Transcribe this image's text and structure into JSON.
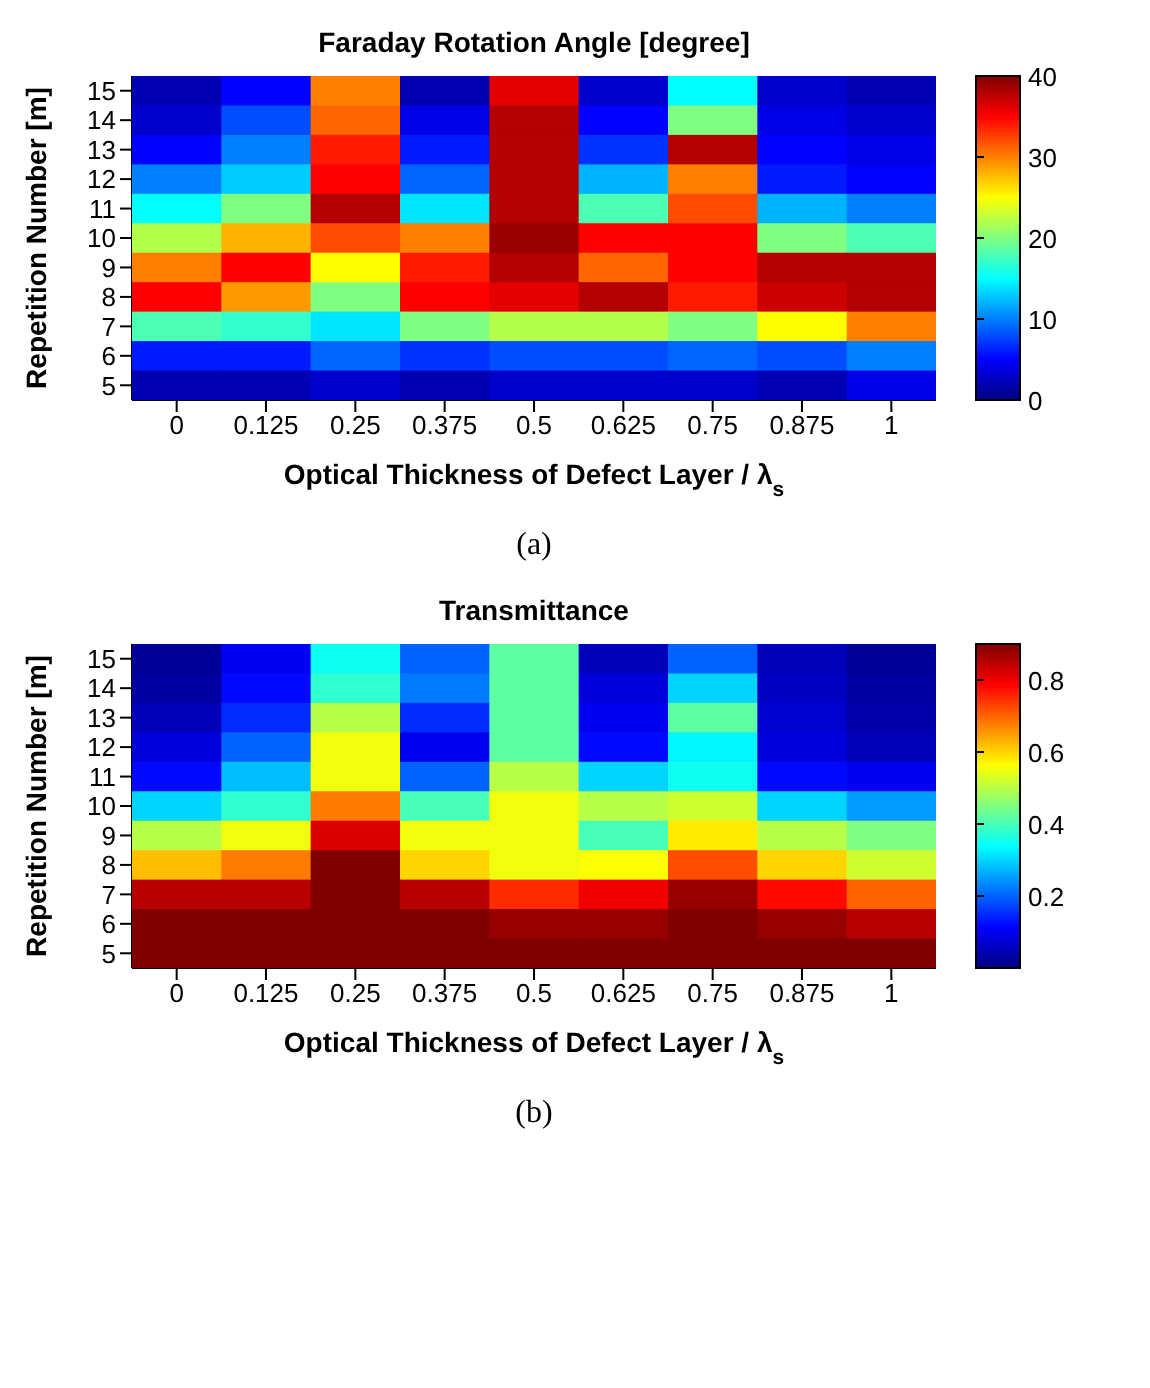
{
  "chart_data": [
    {
      "type": "heatmap",
      "title": "Faraday Rotation Angle [degree]",
      "xlabel": "Optical Thickness of Defect Layer / λ$_{s}$",
      "ylabel": "Repetition Number [m]",
      "annotations": [
        "(a)"
      ],
      "categories": [
        "0",
        "0.125",
        "0.25",
        "0.375",
        "0.5",
        "0.625",
        "0.75",
        "0.875",
        "1"
      ],
      "y_categories": [
        "15",
        "14",
        "13",
        "12",
        "11",
        "10",
        "9",
        "8",
        "7",
        "6",
        "5"
      ],
      "cells": [
        [
          2,
          5,
          30,
          2,
          36,
          3,
          15,
          3,
          2
        ],
        [
          3,
          8,
          31,
          4,
          38,
          5,
          20,
          4,
          3
        ],
        [
          5,
          10,
          34,
          6,
          38,
          7,
          38,
          5,
          4
        ],
        [
          10,
          13,
          35,
          9,
          38,
          12,
          30,
          6,
          5
        ],
        [
          15,
          20,
          38,
          14,
          38,
          18,
          32,
          12,
          10
        ],
        [
          22,
          28,
          32,
          30,
          39,
          35,
          35,
          20,
          18
        ],
        [
          30,
          35,
          25,
          34,
          38,
          31,
          35,
          38,
          38
        ],
        [
          35,
          29,
          20,
          35,
          36,
          38,
          34,
          37,
          38
        ],
        [
          18,
          17,
          14,
          20,
          22,
          22,
          20,
          25,
          30
        ],
        [
          6,
          6,
          9,
          7,
          8,
          8,
          9,
          8,
          10
        ],
        [
          2,
          2,
          3,
          2,
          3,
          3,
          3,
          2,
          4
        ]
      ],
      "clim": [
        0,
        40
      ],
      "cticks": [
        0,
        10,
        20,
        30,
        40
      ]
    },
    {
      "type": "heatmap",
      "title": "Transmittance",
      "xlabel": "Optical Thickness of Defect Layer / λ$_{s}$",
      "ylabel": "Repetition Number [m]",
      "annotations": [
        "(b)"
      ],
      "categories": [
        "0",
        "0.125",
        "0.25",
        "0.375",
        "0.5",
        "0.625",
        "0.75",
        "0.875",
        "1"
      ],
      "y_categories": [
        "15",
        "14",
        "13",
        "12",
        "11",
        "10",
        "9",
        "8",
        "7",
        "6",
        "5"
      ],
      "cells": [
        [
          0.02,
          0.1,
          0.35,
          0.2,
          0.42,
          0.05,
          0.2,
          0.05,
          0.02
        ],
        [
          0.03,
          0.12,
          0.38,
          0.22,
          0.42,
          0.08,
          0.3,
          0.06,
          0.03
        ],
        [
          0.05,
          0.15,
          0.5,
          0.15,
          0.42,
          0.1,
          0.42,
          0.07,
          0.04
        ],
        [
          0.08,
          0.2,
          0.55,
          0.1,
          0.42,
          0.12,
          0.33,
          0.08,
          0.05
        ],
        [
          0.12,
          0.28,
          0.55,
          0.2,
          0.5,
          0.3,
          0.35,
          0.12,
          0.1
        ],
        [
          0.3,
          0.38,
          0.68,
          0.4,
          0.55,
          0.5,
          0.52,
          0.3,
          0.25
        ],
        [
          0.5,
          0.55,
          0.82,
          0.55,
          0.55,
          0.4,
          0.58,
          0.5,
          0.45
        ],
        [
          0.62,
          0.68,
          0.9,
          0.6,
          0.55,
          0.56,
          0.72,
          0.6,
          0.52
        ],
        [
          0.85,
          0.85,
          0.9,
          0.85,
          0.75,
          0.8,
          0.88,
          0.78,
          0.7
        ],
        [
          0.9,
          0.9,
          0.9,
          0.9,
          0.88,
          0.88,
          0.9,
          0.88,
          0.85
        ],
        [
          0.9,
          0.9,
          0.9,
          0.9,
          0.9,
          0.9,
          0.9,
          0.9,
          0.9
        ]
      ],
      "clim": [
        0,
        0.9
      ],
      "cticks": [
        {
          "value": 0,
          "label": null
        },
        0.2,
        0.4,
        0.6,
        0.8
      ]
    }
  ]
}
